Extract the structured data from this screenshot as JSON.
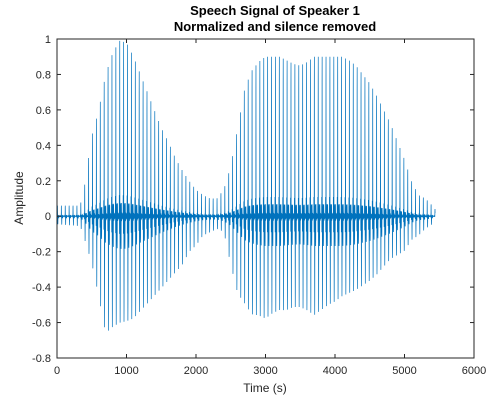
{
  "chart_data": {
    "type": "line",
    "title": "Speech Signal of Speaker 1",
    "subtitle": "Normalized and silence removed",
    "xlabel": "Time (s)",
    "ylabel": "Amplitude",
    "xlim": [
      0,
      6000
    ],
    "ylim": [
      -0.8,
      1
    ],
    "xticks": [
      "0",
      "1000",
      "2000",
      "3000",
      "4000",
      "5000",
      "6000"
    ],
    "yticks": [
      "-0.8",
      "-0.6",
      "-0.4",
      "-0.2",
      "0",
      "0.2",
      "0.4",
      "0.6",
      "0.8",
      "1"
    ],
    "grid": false,
    "series": [
      {
        "color": "#0072BD",
        "sample_count": 5440,
        "samples_per_cycle": 56,
        "envelope_x": [
          0,
          300,
          350,
          400,
          500,
          600,
          700,
          800,
          900,
          1000,
          1100,
          1200,
          1300,
          1400,
          1500,
          1600,
          1700,
          1800,
          1900,
          2000,
          2100,
          2200,
          2300,
          2400,
          2500,
          2600,
          2700,
          2800,
          2900,
          3000,
          3100,
          3200,
          3300,
          3400,
          3500,
          3600,
          3700,
          3800,
          3900,
          4000,
          4100,
          4200,
          4300,
          4400,
          4500,
          4600,
          4700,
          4800,
          4900,
          5000,
          5100,
          5200,
          5300,
          5400,
          5440
        ],
        "envelope_max": [
          0.06,
          0.06,
          0.08,
          0.18,
          0.45,
          0.6,
          0.8,
          0.92,
          0.99,
          0.98,
          0.9,
          0.8,
          0.7,
          0.6,
          0.5,
          0.42,
          0.33,
          0.26,
          0.2,
          0.15,
          0.12,
          0.1,
          0.1,
          0.15,
          0.28,
          0.5,
          0.72,
          0.82,
          0.87,
          0.9,
          0.9,
          0.9,
          0.88,
          0.86,
          0.85,
          0.87,
          0.9,
          0.9,
          0.9,
          0.9,
          0.9,
          0.88,
          0.85,
          0.8,
          0.75,
          0.68,
          0.6,
          0.52,
          0.42,
          0.32,
          0.2,
          0.12,
          0.1,
          0.06,
          0.04
        ],
        "envelope_min": [
          -0.05,
          -0.06,
          -0.08,
          -0.15,
          -0.3,
          -0.5,
          -0.73,
          -0.7,
          -0.68,
          -0.67,
          -0.65,
          -0.6,
          -0.55,
          -0.5,
          -0.45,
          -0.4,
          -0.35,
          -0.3,
          -0.22,
          -0.18,
          -0.12,
          -0.1,
          -0.08,
          -0.1,
          -0.3,
          -0.48,
          -0.55,
          -0.62,
          -0.63,
          -0.65,
          -0.62,
          -0.6,
          -0.6,
          -0.58,
          -0.58,
          -0.6,
          -0.63,
          -0.6,
          -0.57,
          -0.55,
          -0.52,
          -0.5,
          -0.48,
          -0.45,
          -0.42,
          -0.38,
          -0.33,
          -0.28,
          -0.25,
          -0.22,
          -0.15,
          -0.12,
          -0.08,
          -0.05,
          -0.04
        ]
      }
    ]
  }
}
